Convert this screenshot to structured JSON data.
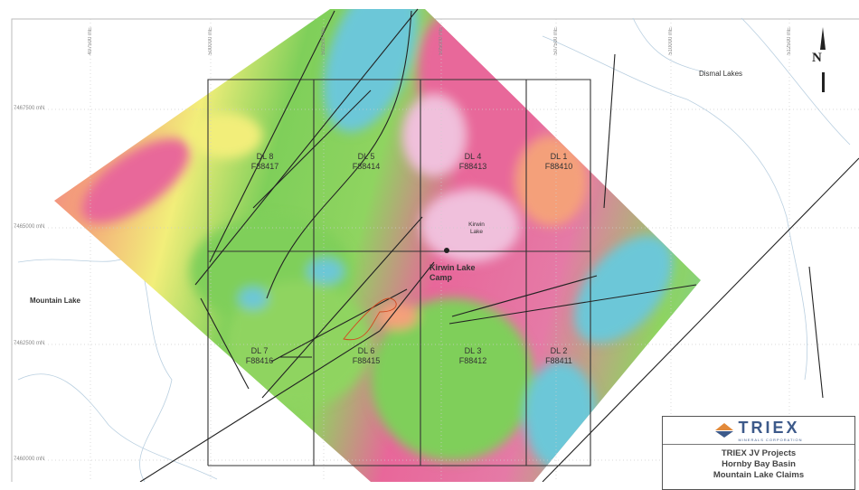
{
  "map": {
    "eastings": [
      "497500 mE",
      "500000 mE",
      "502500 mE",
      "505000 mE",
      "507500 mE",
      "510000 mE",
      "512500 mE"
    ],
    "northings": [
      "7467500 mN",
      "7465000 mN",
      "7462500 mN",
      "7460000 mN"
    ],
    "north_label": "N",
    "places": {
      "dismal_lakes": "Dismal Lakes",
      "mountain_lake": "Mountain Lake",
      "kirwin_lake": "Kirwin Lake",
      "camp": "Kirwin Lake Camp"
    },
    "claims": [
      {
        "name": "DL 8",
        "id": "F88417"
      },
      {
        "name": "DL 5",
        "id": "F88414"
      },
      {
        "name": "DL 4",
        "id": "F88413"
      },
      {
        "name": "DL 1",
        "id": "F88410"
      },
      {
        "name": "DL 7",
        "id": "F88416"
      },
      {
        "name": "DL 6",
        "id": "F88415"
      },
      {
        "name": "DL 3",
        "id": "F88412"
      },
      {
        "name": "DL 2",
        "id": "F88411"
      }
    ],
    "colors": {
      "high": "#e8679a",
      "mid_high": "#f4a07a",
      "mid": "#f2ee7a",
      "low_mid": "#7fcf5a",
      "low": "#6cc7d8",
      "peak": "#f0c0dc"
    }
  },
  "legend": {
    "logo_text": "TRIEX",
    "logo_subtext": "MINERALS CORPORATION",
    "line1": "TRIEX JV Projects",
    "line2": "Hornby Bay Basin",
    "line3": "Mountain Lake Claims"
  }
}
